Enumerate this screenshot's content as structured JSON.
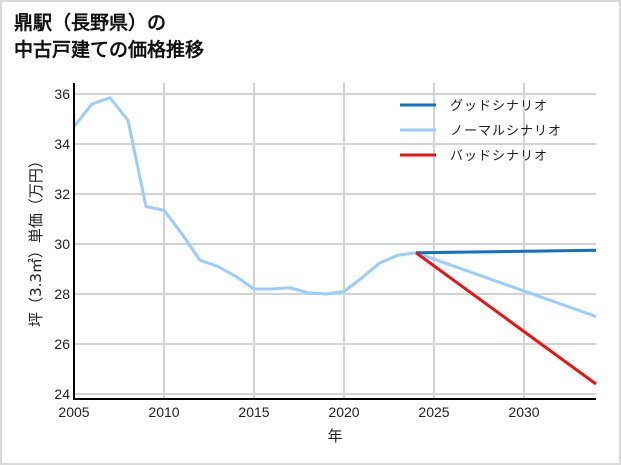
{
  "title": {
    "line1": "鼎駅（長野県）の",
    "line2": "中古戸建ての価格推移"
  },
  "axes": {
    "xlabel": "年",
    "ylabel": "坪（3.3㎡）単価（万円）",
    "x_ticks": [
      "2005",
      "2010",
      "2015",
      "2020",
      "2025",
      "2030"
    ],
    "y_ticks": [
      "24",
      "26",
      "28",
      "30",
      "32",
      "34",
      "36"
    ]
  },
  "legend": [
    {
      "label": "グッドシナリオ",
      "color": "#1170c8"
    },
    {
      "label": "ノーマルシナリオ",
      "color": "#99ccff"
    },
    {
      "label": "バッドシナリオ",
      "color": "#ee1111"
    }
  ],
  "chart_data": {
    "type": "line",
    "title": "鼎駅（長野県）の中古戸建ての価格推移",
    "xlabel": "年",
    "ylabel": "坪（3.3㎡）単価（万円）",
    "xlim": [
      2005,
      2034
    ],
    "ylim": [
      23.8,
      36.4
    ],
    "grid": true,
    "legend_position": "upper right",
    "series": [
      {
        "name": "ノーマルシナリオ",
        "color": "#99ccff",
        "x": [
          2005,
          2006,
          2007,
          2008,
          2009,
          2010,
          2011,
          2012,
          2013,
          2014,
          2015,
          2016,
          2017,
          2018,
          2019,
          2020,
          2021,
          2022,
          2023,
          2024,
          2034
        ],
        "values": [
          34.7,
          35.6,
          35.85,
          34.95,
          31.5,
          31.35,
          30.4,
          29.35,
          29.1,
          28.7,
          28.2,
          28.2,
          28.25,
          28.05,
          28.0,
          28.1,
          28.65,
          29.25,
          29.55,
          29.65,
          27.1
        ]
      },
      {
        "name": "グッドシナリオ",
        "color": "#1170c8",
        "x": [
          2024,
          2034
        ],
        "values": [
          29.65,
          29.75
        ]
      },
      {
        "name": "バッドシナリオ",
        "color": "#ee1111",
        "x": [
          2024,
          2034
        ],
        "values": [
          29.65,
          24.4
        ]
      }
    ]
  }
}
